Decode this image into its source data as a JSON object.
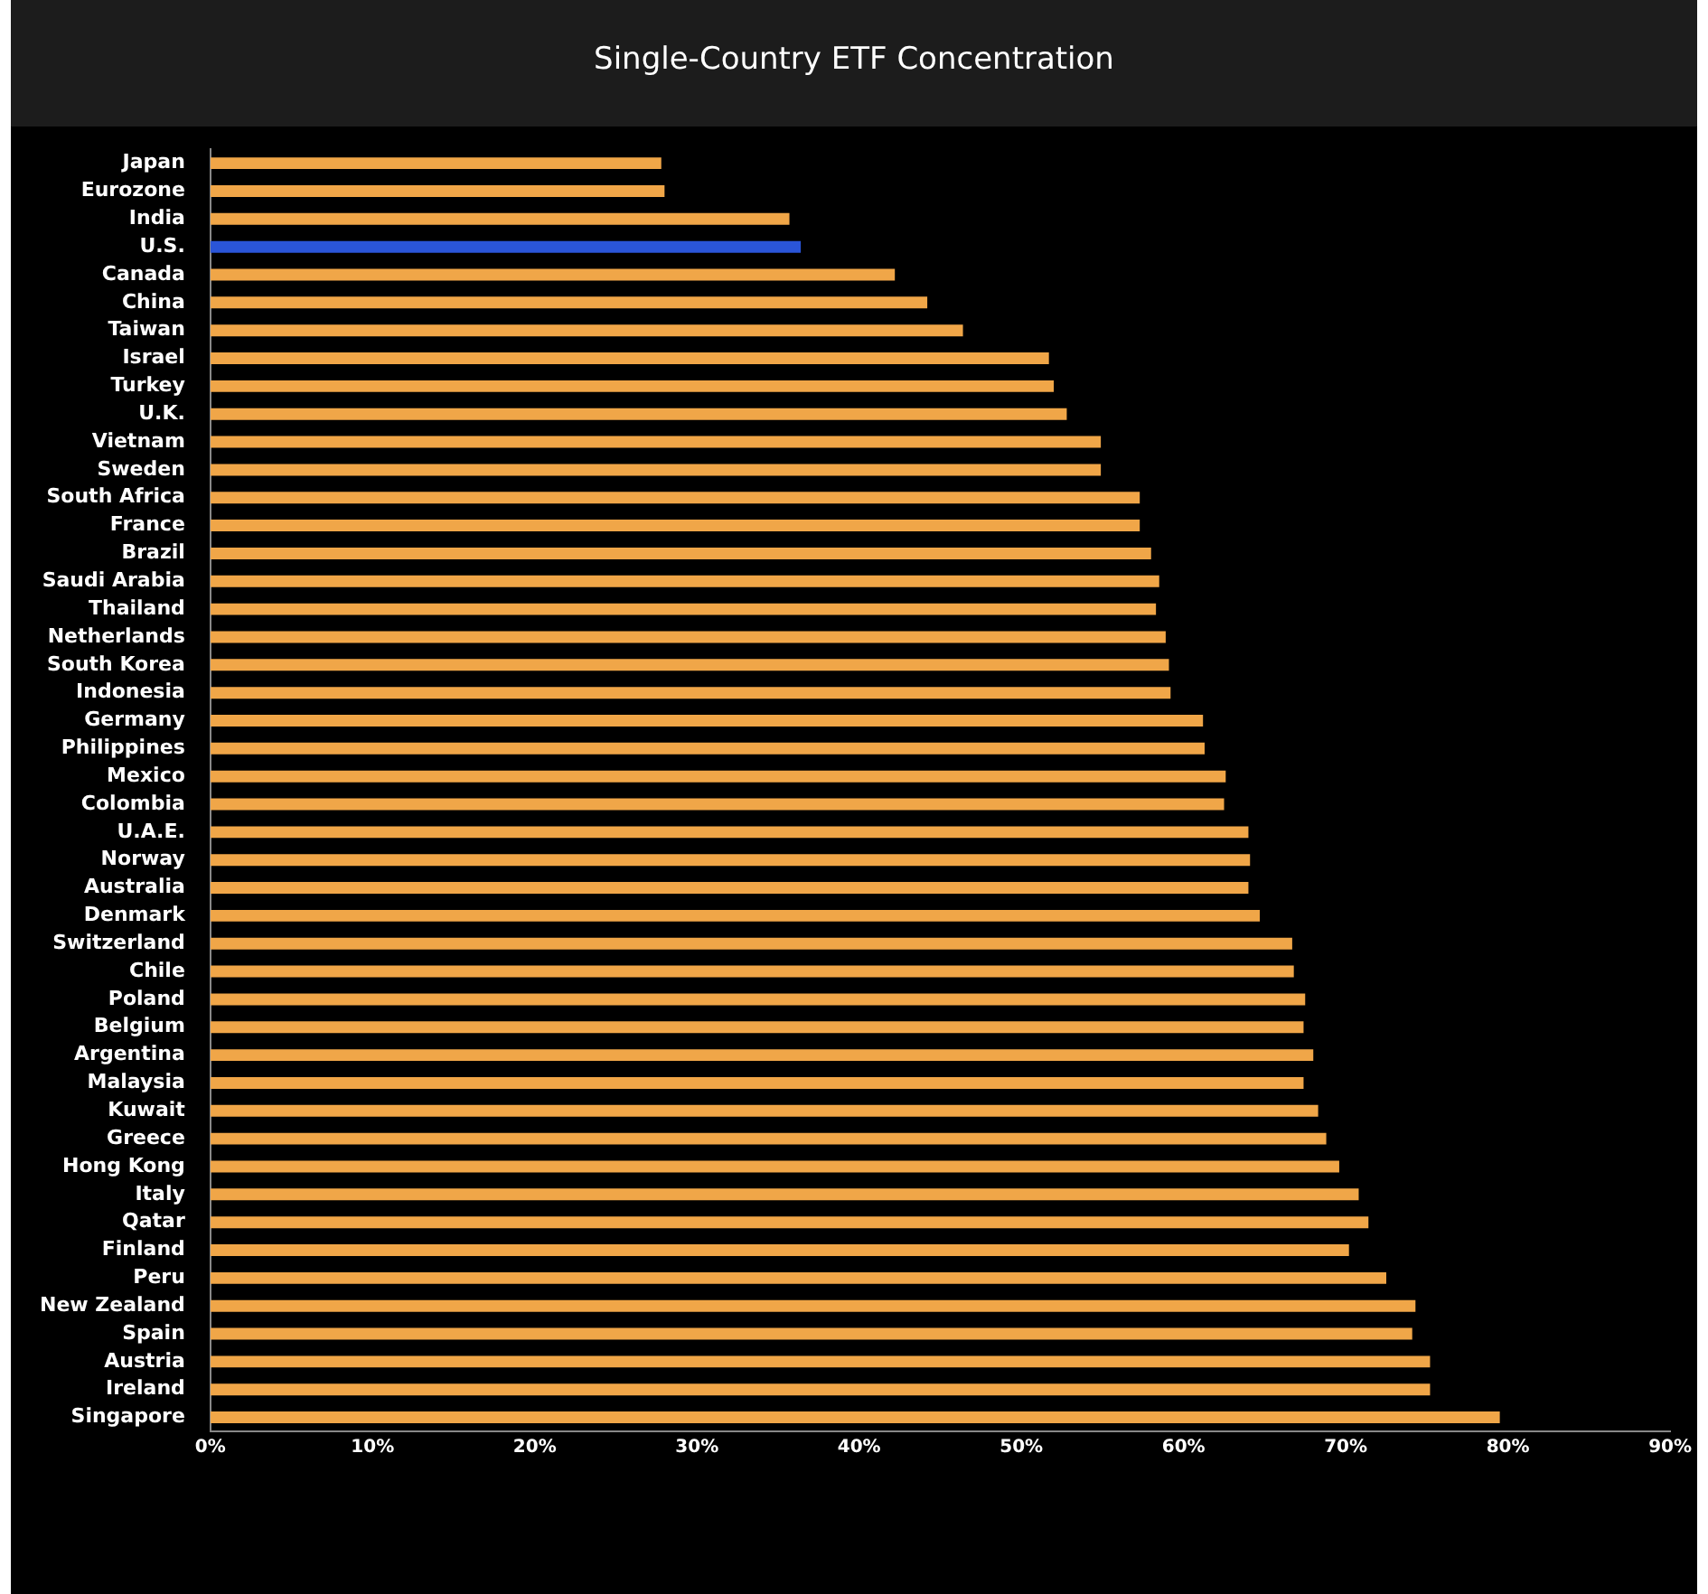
{
  "chart_data": {
    "type": "bar",
    "orientation": "horizontal",
    "title": "Single-Country ETF Concentration",
    "categories": [
      "Japan",
      "Eurozone",
      "India",
      "U.S.",
      "Canada",
      "China",
      "Taiwan",
      "Israel",
      "Turkey",
      "U.K.",
      "Vietnam",
      "Sweden",
      "South Africa",
      "France",
      "Brazil",
      "Saudi Arabia",
      "Thailand",
      "Netherlands",
      "South Korea",
      "Indonesia",
      "Germany",
      "Philippines",
      "Mexico",
      "Colombia",
      "U.A.E.",
      "Norway",
      "Australia",
      "Denmark",
      "Switzerland",
      "Chile",
      "Poland",
      "Belgium",
      "Argentina",
      "Malaysia",
      "Kuwait",
      "Greece",
      "Hong Kong",
      "Italy",
      "Qatar",
      "Finland",
      "Peru",
      "New Zealand",
      "Spain",
      "Austria",
      "Ireland",
      "Singapore"
    ],
    "values": [
      27.8,
      28,
      35.7,
      36.4,
      42.2,
      44.2,
      46.4,
      51.7,
      52,
      52.8,
      54.9,
      54.9,
      57.3,
      57.3,
      58,
      58.5,
      58.3,
      58.9,
      59.1,
      59.2,
      61.2,
      61.3,
      62.6,
      62.5,
      64,
      64.1,
      64,
      64.7,
      66.7,
      66.8,
      67.5,
      67.4,
      68,
      67.4,
      68.3,
      68.8,
      69.6,
      70.8,
      71.4,
      70.2,
      72.5,
      74.3,
      74.1,
      75.2,
      75.2,
      79.5
    ],
    "colors": [
      "#f0a648",
      "#f0a648",
      "#f0a648",
      "#2a55d8",
      "#f0a648",
      "#f0a648",
      "#f0a648",
      "#f0a648",
      "#f0a648",
      "#f0a648",
      "#f0a648",
      "#f0a648",
      "#f0a648",
      "#f0a648",
      "#f0a648",
      "#f0a648",
      "#f0a648",
      "#f0a648",
      "#f0a648",
      "#f0a648",
      "#f0a648",
      "#f0a648",
      "#f0a648",
      "#f0a648",
      "#f0a648",
      "#f0a648",
      "#f0a648",
      "#f0a648",
      "#f0a648",
      "#f0a648",
      "#f0a648",
      "#f0a648",
      "#f0a648",
      "#f0a648",
      "#f0a648",
      "#f0a648",
      "#f0a648",
      "#f0a648",
      "#f0a648",
      "#f0a648",
      "#f0a648",
      "#f0a648",
      "#f0a648",
      "#f0a648",
      "#f0a648",
      "#f0a648"
    ],
    "xlim": [
      0,
      90
    ],
    "xticks": [
      {
        "value": 0,
        "label": "0%"
      },
      {
        "value": 10,
        "label": "10%"
      },
      {
        "value": 20,
        "label": "20%"
      },
      {
        "value": 30,
        "label": "30%"
      },
      {
        "value": 40,
        "label": "40%"
      },
      {
        "value": 50,
        "label": "50%"
      },
      {
        "value": 60,
        "label": "60%"
      },
      {
        "value": 70,
        "label": "70%"
      },
      {
        "value": 80,
        "label": "80%"
      },
      {
        "value": 90,
        "label": "90%"
      }
    ],
    "grid": false,
    "legend": false
  }
}
